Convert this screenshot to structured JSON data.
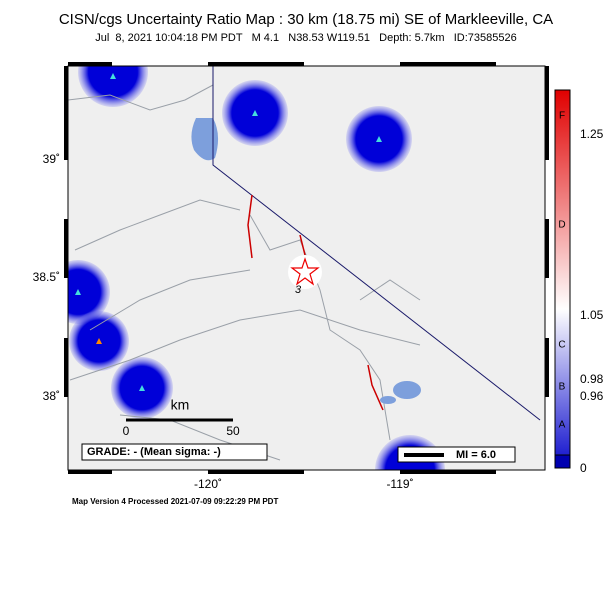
{
  "header": {
    "title": "CISN/cgs Uncertainty Ratio Map : 30 km (18.75 mi) SE of Markleeville, CA",
    "subtitle": "Jul  8, 2021 10:04:18 PM PDT   M 4.1   N38.53 W119.51   Depth: 5.7km   ID:73585526"
  },
  "map": {
    "lat_labels": [
      "39˚",
      "38.5˚",
      "38˚"
    ],
    "lon_labels": [
      "-120˚",
      "-119˚"
    ],
    "scale": {
      "unit": "km",
      "labels": [
        "0",
        "50"
      ]
    },
    "grade": "GRADE: - (Mean sigma: -)",
    "mi_label": "MI = 6.0",
    "event_label": "3"
  },
  "colorbar": {
    "letters": [
      "F",
      "D",
      "C",
      "B",
      "A"
    ],
    "values": [
      "1.25",
      "1.05",
      "0.98",
      "0.96",
      "0"
    ]
  },
  "footer": "Map Version 4 Processed 2021-07-09 09:22:29 PM PDT"
}
